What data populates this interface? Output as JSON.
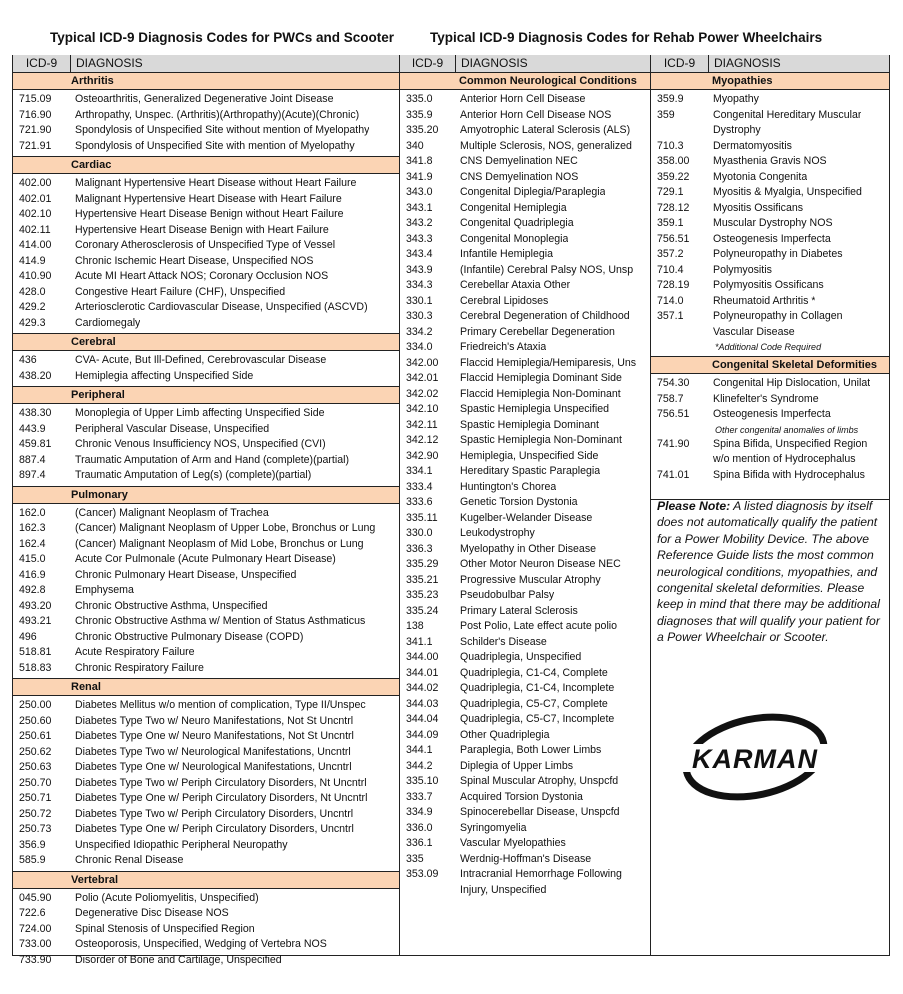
{
  "titles": {
    "left": "Typical ICD-9 Diagnosis Codes for PWCs and Scooter",
    "right": "Typical ICD-9 Diagnosis Codes for Rehab Power Wheelchairs"
  },
  "header": {
    "code": "ICD-9",
    "diagnosis": "DIAGNOSIS"
  },
  "columns": [
    {
      "sections": [
        {
          "heading": "Arthritis",
          "rows": [
            {
              "code": "715.09",
              "dx": "Osteoarthritis, Generalized Degenerative Joint Disease"
            },
            {
              "code": "716.90",
              "dx": "Arthropathy, Unspec. (Arthritis)(Arthropathy)(Acute)(Chronic)"
            },
            {
              "code": "721.90",
              "dx": "Spondylosis of Unspecified Site without mention of Myelopathy"
            },
            {
              "code": "721.91",
              "dx": "Spondylosis of Unspecified Site with mention of Myelopathy"
            },
            {
              "code": "",
              "dx": ""
            }
          ]
        },
        {
          "heading": "Cardiac",
          "rows": [
            {
              "code": "402.00",
              "dx": "Malignant Hypertensive Heart Disease without Heart Failure"
            },
            {
              "code": "402.01",
              "dx": "Malignant Hypertensive Heart Disease with Heart Failure"
            },
            {
              "code": "402.10",
              "dx": "Hypertensive Heart Disease Benign without Heart Failure"
            },
            {
              "code": "402.11",
              "dx": "Hypertensive Heart Disease Benign with Heart Failure"
            },
            {
              "code": "414.00",
              "dx": "Coronary Atherosclerosis of Unspecified Type of Vessel"
            },
            {
              "code": "414.9",
              "dx": "Chronic Ischemic Heart Disease, Unspecified NOS"
            },
            {
              "code": "410.90",
              "dx": "Acute MI Heart Attack NOS; Coronary Occlusion NOS"
            },
            {
              "code": "428.0",
              "dx": "Congestive Heart Failure (CHF), Unspecified"
            },
            {
              "code": "429.2",
              "dx": "Arteriosclerotic Cardiovascular Disease, Unspecified (ASCVD)"
            },
            {
              "code": "429.3",
              "dx": "Cardiomegaly"
            }
          ]
        },
        {
          "heading": "Cerebral",
          "rows": [
            {
              "code": "436",
              "dx": "CVA- Acute, But Ill-Defined, Cerebrovascular Disease"
            },
            {
              "code": "438.20",
              "dx": "Hemiplegia affecting Unspecified Side"
            }
          ]
        },
        {
          "heading": "Peripheral",
          "rows": [
            {
              "code": "438.30",
              "dx": "Monoplegia of Upper Limb affecting Unspecified Side"
            },
            {
              "code": "443.9",
              "dx": "Peripheral Vascular Disease, Unspecified"
            },
            {
              "code": "459.81",
              "dx": "Chronic Venous Insufficiency NOS, Unspecified (CVI)"
            },
            {
              "code": "887.4",
              "dx": "Traumatic Amputation of Arm and Hand (complete)(partial)"
            },
            {
              "code": "897.4",
              "dx": "Traumatic Amputation of Leg(s) (complete)(partial)"
            }
          ]
        },
        {
          "heading": "Pulmonary",
          "rows": [
            {
              "code": "162.0",
              "dx": "(Cancer) Malignant Neoplasm of Trachea"
            },
            {
              "code": "162.3",
              "dx": "(Cancer) Malignant Neoplasm of Upper Lobe, Bronchus or Lung"
            },
            {
              "code": "162.4",
              "dx": "(Cancer) Malignant Neoplasm of Mid Lobe, Bronchus or Lung"
            },
            {
              "code": "415.0",
              "dx": "Acute Cor Pulmonale (Acute Pulmonary Heart  Disease)"
            },
            {
              "code": "416.9",
              "dx": "Chronic Pulmonary Heart Disease, Unspecified"
            },
            {
              "code": "492.8",
              "dx": "Emphysema"
            },
            {
              "code": "493.20",
              "dx": "Chronic Obstructive Asthma, Unspecified"
            },
            {
              "code": "493.21",
              "dx": "Chronic Obstructive Asthma w/ Mention of Status Asthmaticus"
            },
            {
              "code": "496",
              "dx": "Chronic Obstructive Pulmonary Disease (COPD)"
            },
            {
              "code": "518.81",
              "dx": "Acute Respiratory Failure"
            },
            {
              "code": "518.83",
              "dx": "Chronic Respiratory Failure"
            }
          ]
        },
        {
          "heading": "Renal",
          "rows": [
            {
              "code": "250.00",
              "dx": "Diabetes Mellitus w/o mention of complication, Type II/Unspec"
            },
            {
              "code": "250.60",
              "dx": "Diabetes Type Two w/ Neuro Manifestations, Not St Uncntrl"
            },
            {
              "code": "250.61",
              "dx": "Diabetes Type One w/ Neuro Manifestations, Not St Uncntrl"
            },
            {
              "code": "250.62",
              "dx": "Diabetes Type Two w/ Neurological Manifestations, Uncntrl"
            },
            {
              "code": "250.63",
              "dx": "Diabetes Type One w/ Neurological Manifestations, Uncntrl"
            },
            {
              "code": "250.70",
              "dx": "Diabetes Type Two w/ Periph Circulatory Disorders, Nt Uncntrl"
            },
            {
              "code": "250.71",
              "dx": "Diabetes Type One w/ Periph Circulatory Disorders, Nt Uncntrl"
            },
            {
              "code": "250.72",
              "dx": "Diabetes Type Two w/ Periph Circulatory Disorders, Uncntrl"
            },
            {
              "code": "250.73",
              "dx": "Diabetes Type One w/ Periph Circulatory Disorders, Uncntrl"
            },
            {
              "code": "356.9",
              "dx": "Unspecified Idiopathic Peripheral Neuropathy"
            },
            {
              "code": "585.9",
              "dx": "Chronic Renal Disease"
            }
          ]
        },
        {
          "heading": "Vertebral",
          "rows": [
            {
              "code": "045.90",
              "dx": "Polio (Acute Poliomyelitis, Unspecified)"
            },
            {
              "code": "722.6",
              "dx": "Degenerative Disc Disease NOS"
            },
            {
              "code": "724.00",
              "dx": "Spinal Stenosis of Unspecified Region"
            },
            {
              "code": "733.00",
              "dx": "Osteoporosis, Unspecified, Wedging of Vertebra NOS"
            },
            {
              "code": "733.90",
              "dx": "Disorder of Bone and Cartilage, Unspecified"
            }
          ]
        }
      ]
    },
    {
      "sections": [
        {
          "heading": "Common Neurological Conditions",
          "rows": [
            {
              "code": "335.0",
              "dx": "Anterior Horn Cell Disease"
            },
            {
              "code": "335.9",
              "dx": "Anterior Horn Cell Disease NOS"
            },
            {
              "code": "335.20",
              "dx": "Amyotrophic Lateral Sclerosis (ALS)"
            },
            {
              "code": "340",
              "dx": "Multiple Sclerosis, NOS, generalized"
            },
            {
              "code": "341.8",
              "dx": "CNS Demyelination NEC"
            },
            {
              "code": "341.9",
              "dx": "CNS Demyelination NOS"
            },
            {
              "code": "343.0",
              "dx": "Congenital Diplegia/Paraplegia"
            },
            {
              "code": "343.1",
              "dx": "Congenital Hemiplegia"
            },
            {
              "code": "343.2",
              "dx": "Congenital Quadriplegia"
            },
            {
              "code": "343.3",
              "dx": "Congenital Monoplegia"
            },
            {
              "code": "343.4",
              "dx": "Infantile Hemiplegia"
            },
            {
              "code": "343.9",
              "dx": "(Infantile) Cerebral Palsy NOS, Unsp"
            },
            {
              "code": "334.3",
              "dx": "Cerebellar Ataxia Other"
            },
            {
              "code": "330.1",
              "dx": "Cerebral Lipidoses"
            },
            {
              "code": "330.3",
              "dx": "Cerebral Degeneration of Childhood"
            },
            {
              "code": "334.2",
              "dx": "Primary Cerebellar Degeneration"
            },
            {
              "code": "334.0",
              "dx": "Friedreich's Ataxia"
            },
            {
              "code": "342.00",
              "dx": "Flaccid Hemiplegia/Hemiparesis, Uns"
            },
            {
              "code": "342.01",
              "dx": "Flaccid Hemiplegia Dominant Side"
            },
            {
              "code": "342.02",
              "dx": "Flaccid Hemiplegia Non-Dominant"
            },
            {
              "code": "342.10",
              "dx": "Spastic Hemiplegia Unspecified"
            },
            {
              "code": "342.11",
              "dx": "Spastic Hemiplegia Dominant"
            },
            {
              "code": "342.12",
              "dx": "Spastic Hemiplegia Non-Dominant"
            },
            {
              "code": "342.90",
              "dx": "Hemiplegia, Unspecified Side"
            },
            {
              "code": "334.1",
              "dx": "Hereditary Spastic Paraplegia"
            },
            {
              "code": "333.4",
              "dx": "Huntington's Chorea"
            },
            {
              "code": "333.6",
              "dx": "Genetic Torsion Dystonia"
            },
            {
              "code": "335.11",
              "dx": "Kugelber-Welander Disease"
            },
            {
              "code": "330.0",
              "dx": "Leukodystrophy"
            },
            {
              "code": "336.3",
              "dx": "Myelopathy in Other Disease"
            },
            {
              "code": "335.29",
              "dx": "Other Motor Neuron Disease NEC"
            },
            {
              "code": "335.21",
              "dx": "Progressive Muscular Atrophy"
            },
            {
              "code": "335.23",
              "dx": "Pseudobulbar Palsy"
            },
            {
              "code": "335.24",
              "dx": "Primary Lateral Sclerosis"
            },
            {
              "code": "138",
              "dx": "Post Polio, Late effect acute polio"
            },
            {
              "code": "341.1",
              "dx": "Schilder's Disease"
            },
            {
              "code": "344.00",
              "dx": "Quadriplegia, Unspecified"
            },
            {
              "code": "344.01",
              "dx": "Quadriplegia, C1-C4, Complete"
            },
            {
              "code": "344.02",
              "dx": "Quadriplegia, C1-C4, Incomplete"
            },
            {
              "code": "344.03",
              "dx": "Quadriplegia, C5-C7, Complete"
            },
            {
              "code": "344.04",
              "dx": "Quadriplegia, C5-C7, Incomplete"
            },
            {
              "code": "344.09",
              "dx": "Other Quadriplegia"
            },
            {
              "code": "344.1",
              "dx": "Paraplegia, Both Lower Limbs"
            },
            {
              "code": "344.2",
              "dx": "Diplegia of Upper Limbs"
            },
            {
              "code": "335.10",
              "dx": "Spinal Muscular Atrophy, Unspcfd"
            },
            {
              "code": "333.7",
              "dx": "Acquired Torsion Dystonia"
            },
            {
              "code": "334.9",
              "dx": "Spinocerebellar Disease, Unspcfd"
            },
            {
              "code": "336.0",
              "dx": "Syringomyelia"
            },
            {
              "code": "336.1",
              "dx": "Vascular Myelopathies"
            },
            {
              "code": "335",
              "dx": "Werdnig-Hoffman's Disease"
            },
            {
              "code": "353.09",
              "dx": "Intracranial Hemorrhage Following"
            },
            {
              "code": "",
              "dx": "Injury, Unspecified"
            }
          ]
        }
      ]
    },
    {
      "sections": [
        {
          "heading": "Myopathies",
          "rows": [
            {
              "code": "359.9",
              "dx": "Myopathy"
            },
            {
              "code": "359",
              "dx": "Congenital Hereditary Muscular"
            },
            {
              "code": "",
              "dx": "Dystrophy"
            },
            {
              "code": "710.3",
              "dx": "Dermatomyositis"
            },
            {
              "code": "",
              "dx": ""
            },
            {
              "code": "358.00",
              "dx": "Myasthenia Gravis NOS"
            },
            {
              "code": "359.22",
              "dx": "Myotonia Congenita"
            },
            {
              "code": "729.1",
              "dx": "Myositis & Myalgia, Unspecified"
            },
            {
              "code": "728.12",
              "dx": "Myositis Ossificans"
            },
            {
              "code": "359.1",
              "dx": "Muscular Dystrophy NOS"
            },
            {
              "code": "756.51",
              "dx": "Osteogenesis Imperfecta"
            },
            {
              "code": "357.2",
              "dx": "Polyneuropathy in Diabetes"
            },
            {
              "code": "710.4",
              "dx": "Polymyositis"
            },
            {
              "code": "728.19",
              "dx": "Polymyositis Ossificans"
            },
            {
              "code": "714.0",
              "dx": "Rheumatoid Arthritis *"
            },
            {
              "code": "357.1",
              "dx": "Polyneuropathy in Collagen"
            },
            {
              "code": "",
              "dx": "Vascular Disease"
            },
            {
              "note": "*Additional Code Required"
            }
          ]
        },
        {
          "heading": "Congenital Skeletal Deformities",
          "rows": [
            {
              "code": "754.30",
              "dx": "Congenital Hip Dislocation, Unilat"
            },
            {
              "code": "758.7",
              "dx": "Klinefelter's Syndrome"
            },
            {
              "code": "756.51",
              "dx": "Osteogenesis Imperfecta"
            },
            {
              "note": "Other congenital anomalies of limbs"
            },
            {
              "code": "741.90",
              "dx": "Spina Bifida, Unspecified Region"
            },
            {
              "code": "",
              "dx": "w/o mention of Hydrocephalus"
            },
            {
              "code": "741.01",
              "dx": "Spina Bifida with Hydrocephalus"
            }
          ]
        }
      ]
    }
  ],
  "note": {
    "lead": "Please Note:",
    "text": " A listed diagnosis by itself does not automatically qualify the patient for a Power Mobility Device. The above Reference Guide lists the most common neurological conditions, myopathies, and congenital skeletal deformities. Please keep in mind that there may be additional diagnoses that will qualify your patient for a Power Wheelchair or Scooter."
  },
  "logo": {
    "text": "KARMAN"
  },
  "colors": {
    "header_bg": "#d9d9d9",
    "section_bg": "#fbd4b4",
    "border": "#222222"
  }
}
